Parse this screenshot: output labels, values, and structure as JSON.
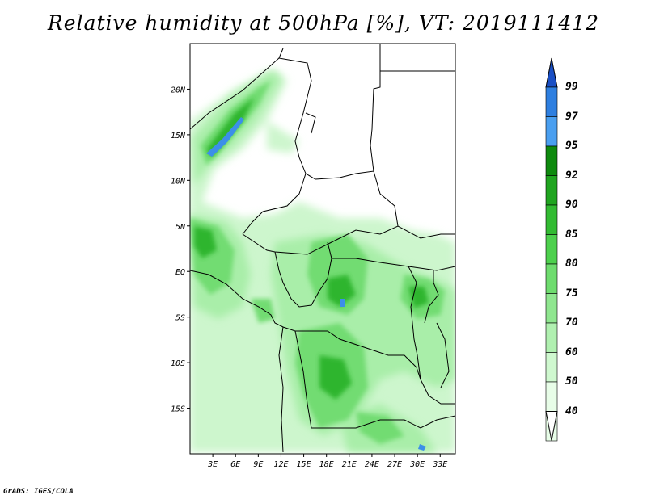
{
  "title": "Relative humidity at 500hPa [%], VT: 2019111412",
  "credit": "GrADS: IGES/COLA",
  "map": {
    "lat_range": [
      -20,
      25
    ],
    "lon_range": [
      0,
      35
    ],
    "lat_ticks": [
      {
        "value": 20,
        "label": "20N"
      },
      {
        "value": 15,
        "label": "15N"
      },
      {
        "value": 10,
        "label": "10N"
      },
      {
        "value": 5,
        "label": "5N"
      },
      {
        "value": 0,
        "label": "EQ"
      },
      {
        "value": -5,
        "label": "5S"
      },
      {
        "value": -10,
        "label": "10S"
      },
      {
        "value": -15,
        "label": "15S"
      }
    ],
    "lon_ticks": [
      {
        "value": 3,
        "label": "3E"
      },
      {
        "value": 6,
        "label": "6E"
      },
      {
        "value": 9,
        "label": "9E"
      },
      {
        "value": 12,
        "label": "12E"
      },
      {
        "value": 15,
        "label": "15E"
      },
      {
        "value": 18,
        "label": "18E"
      },
      {
        "value": 21,
        "label": "21E"
      },
      {
        "value": 24,
        "label": "24E"
      },
      {
        "value": 27,
        "label": "27E"
      },
      {
        "value": 30,
        "label": "30E"
      },
      {
        "value": 33,
        "label": "33E"
      }
    ]
  },
  "colorbar": {
    "levels": [
      {
        "value": "99",
        "color": "#1e5fd6"
      },
      {
        "value": "97",
        "color": "#2e7fe0"
      },
      {
        "value": "95",
        "color": "#4a9ff0"
      },
      {
        "value": "92",
        "color": "#0e8a0e"
      },
      {
        "value": "90",
        "color": "#20a520"
      },
      {
        "value": "85",
        "color": "#32bb32"
      },
      {
        "value": "80",
        "color": "#4dd04d"
      },
      {
        "value": "75",
        "color": "#6edc6e"
      },
      {
        "value": "70",
        "color": "#8fe68f"
      },
      {
        "value": "60",
        "color": "#b0f0b0"
      },
      {
        "value": "50",
        "color": "#cff8cf"
      },
      {
        "value": "40",
        "color": "#e8fde8"
      }
    ],
    "top_color": "#1a4fc4",
    "bottom_color": "#ffffff"
  }
}
